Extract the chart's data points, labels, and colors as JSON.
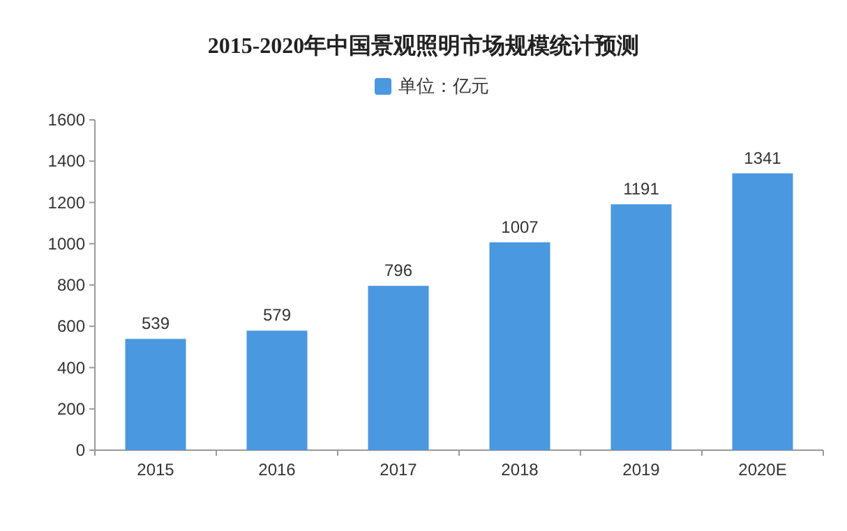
{
  "chart_data": {
    "type": "bar",
    "title": "2015-2020年中国景观照明市场规模统计预测",
    "categories": [
      "2015",
      "2016",
      "2017",
      "2018",
      "2019",
      "2020E"
    ],
    "series": [
      {
        "name": "单位：亿元",
        "color": "#4a98e0",
        "values": [
          539,
          579,
          796,
          1007,
          1191,
          1341
        ]
      }
    ],
    "ylim": [
      0,
      1600
    ],
    "yticks": [
      0,
      200,
      400,
      600,
      800,
      1000,
      1200,
      1400,
      1600
    ],
    "data_labels": true,
    "legend": "top"
  }
}
